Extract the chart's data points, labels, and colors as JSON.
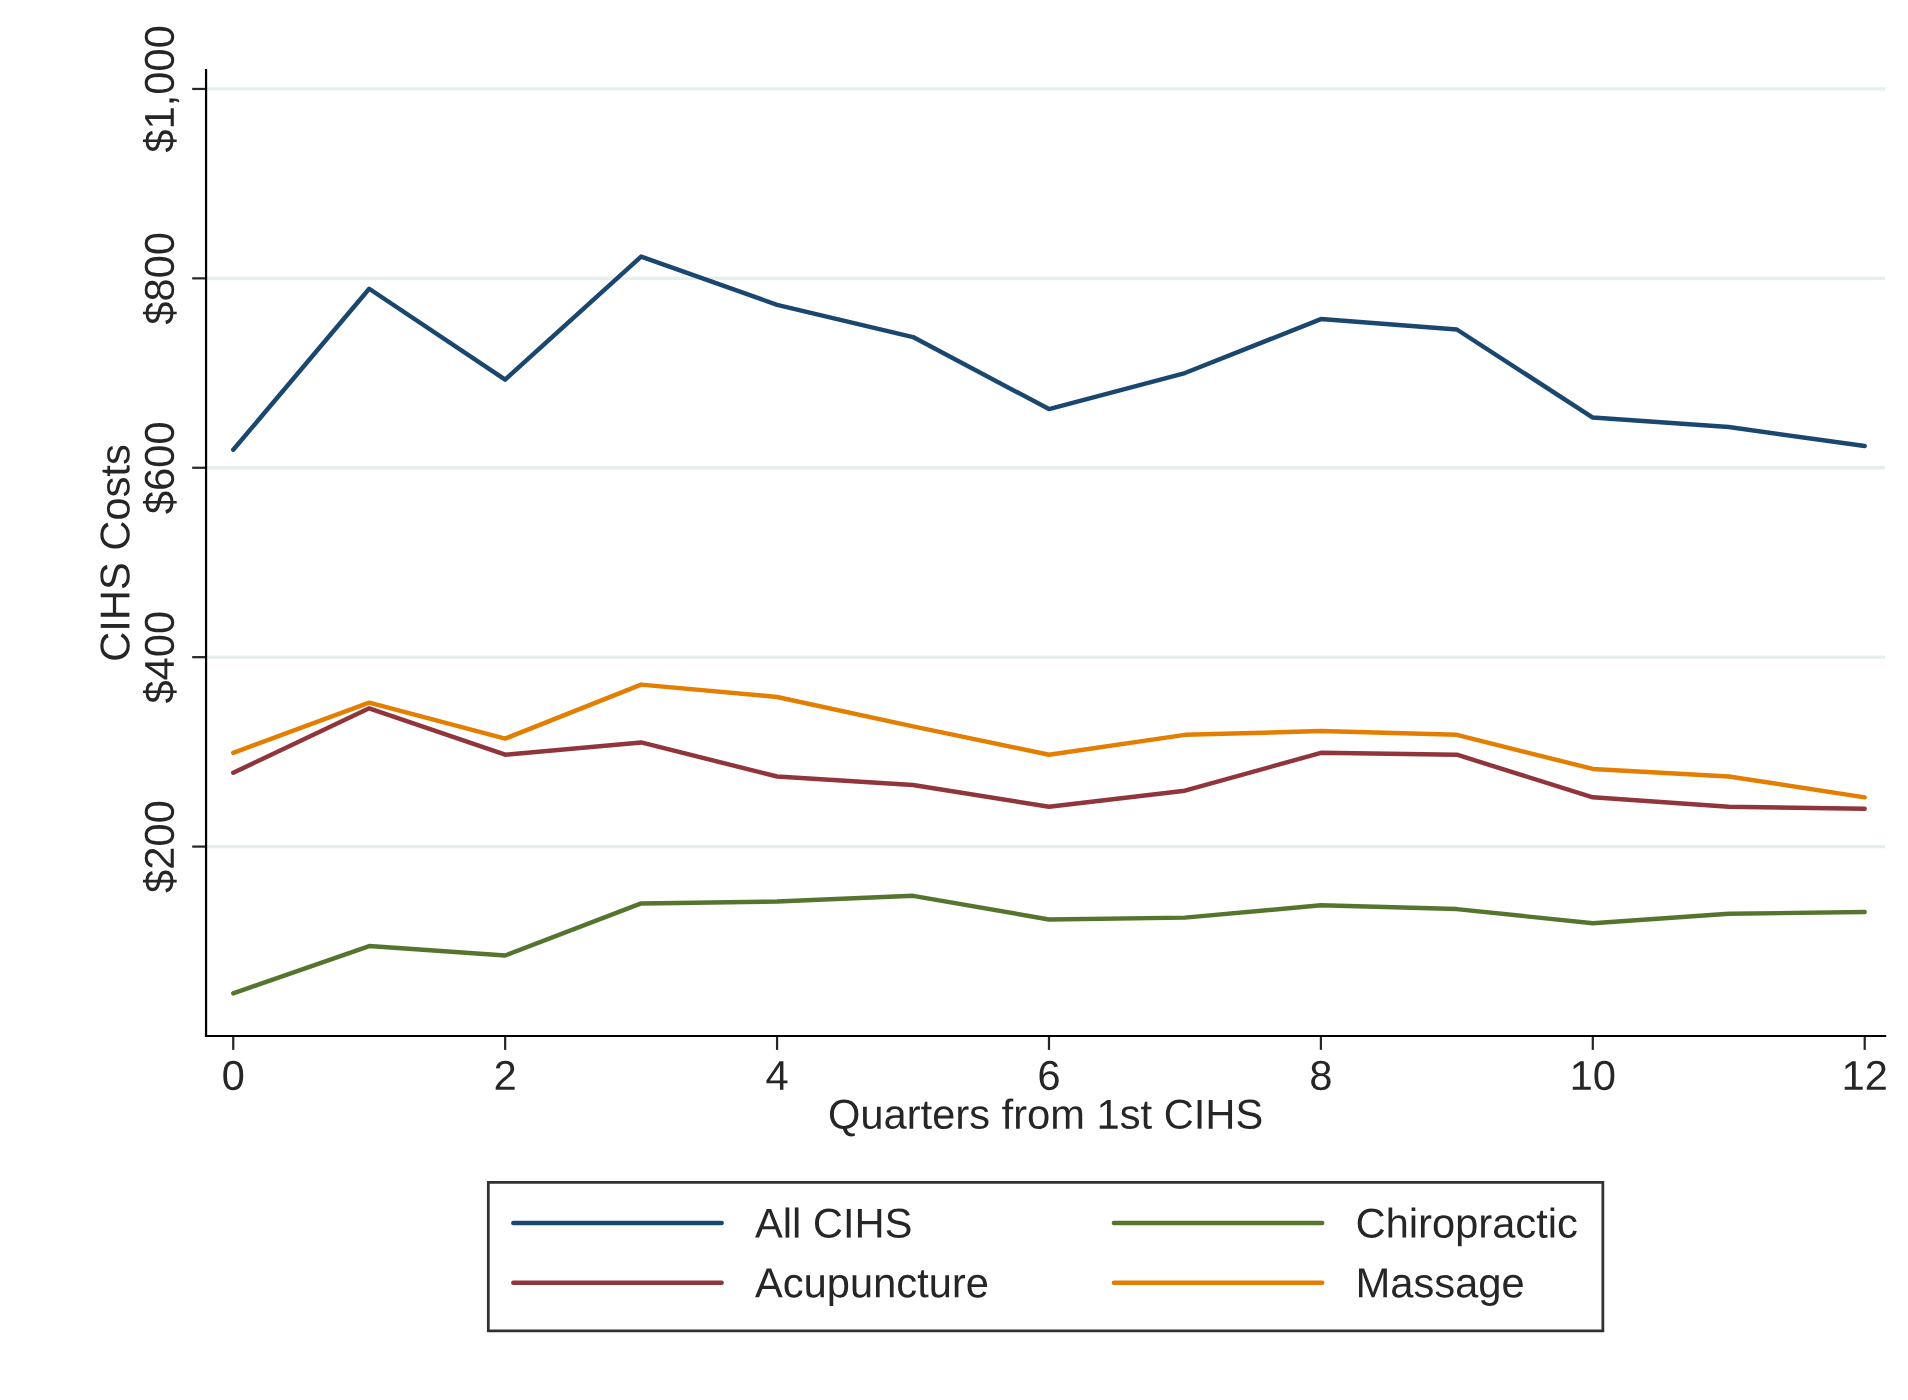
{
  "chart_data": {
    "type": "line",
    "xlabel": "Quarters from 1st CIHS",
    "ylabel": "CIHS Costs",
    "x": [
      0,
      1,
      2,
      3,
      4,
      5,
      6,
      7,
      8,
      9,
      10,
      11,
      12
    ],
    "series": [
      {
        "name": "All CIHS",
        "color": "#1a476f",
        "values": [
          619,
          789,
          693,
          823,
          772,
          738,
          662,
          700,
          757,
          746,
          653,
          643,
          623
        ]
      },
      {
        "name": "Acupuncture",
        "color": "#90353b",
        "values": [
          278,
          346,
          297,
          310,
          274,
          265,
          242,
          259,
          299,
          297,
          252,
          242,
          240
        ]
      },
      {
        "name": "Chiropractic",
        "color": "#55752f",
        "values": [
          45,
          95,
          85,
          140,
          142,
          148,
          123,
          125,
          138,
          134,
          119,
          129,
          131
        ]
      },
      {
        "name": "Massage",
        "color": "#e37e00",
        "values": [
          299,
          352,
          314,
          371,
          358,
          327,
          297,
          318,
          322,
          318,
          282,
          274,
          252
        ]
      }
    ],
    "xlim": [
      -0.2,
      12.15
    ],
    "ylim": [
      0,
      1020
    ],
    "xticks": [
      0,
      2,
      4,
      6,
      8,
      10,
      12
    ],
    "yticks": [
      {
        "value": 200,
        "label": "$200"
      },
      {
        "value": 400,
        "label": "$400"
      },
      {
        "value": 600,
        "label": "$600"
      },
      {
        "value": 800,
        "label": "$800"
      },
      {
        "value": 1000,
        "label": "$1,000"
      }
    ],
    "grid": "y",
    "legend": "bottom",
    "marker": "none",
    "line_style": "solid"
  }
}
